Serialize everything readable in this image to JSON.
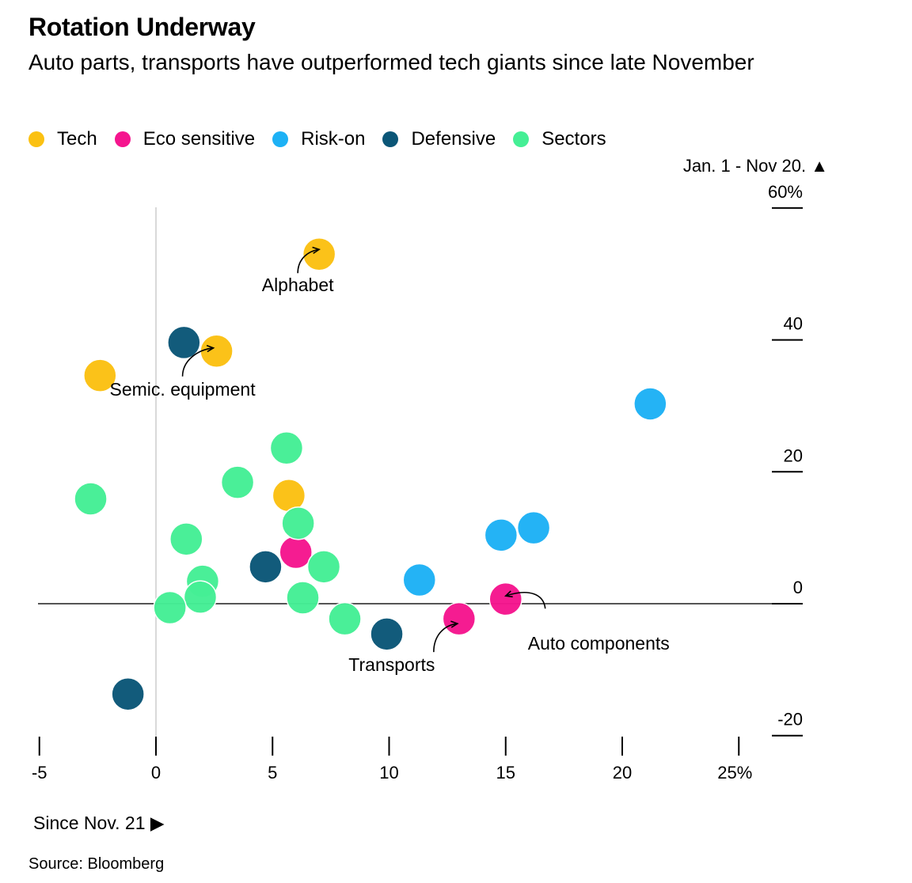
{
  "title": "Rotation Underway",
  "subtitle": "Auto parts, transports have outperformed tech giants since late November",
  "source": "Source: Bloomberg",
  "colors": {
    "Tech": "#fbc112",
    "Eco sensitive": "#f5158e",
    "Risk-on": "#1db1f5",
    "Defensive": "#0b5677",
    "Sectors": "#45ef95"
  },
  "chart_data": {
    "type": "scatter",
    "title": "Rotation Underway",
    "subtitle": "Auto parts, transports have outperformed tech giants since late November",
    "xlabel": "Since Nov. 21 ▶",
    "ylabel": "Jan. 1 - Nov 20. ▲",
    "xlim": [
      -5,
      27
    ],
    "ylim": [
      -20,
      60
    ],
    "x_ticks": [
      -5,
      0,
      5,
      10,
      15,
      20,
      25
    ],
    "x_tick_labels": [
      "-5",
      "0",
      "5",
      "10",
      "15",
      "20",
      "25%"
    ],
    "y_ticks": [
      60,
      40,
      20,
      0,
      -20
    ],
    "y_tick_labels": [
      "60%",
      "40",
      "20",
      "0",
      "-20"
    ],
    "legend": [
      "Tech",
      "Eco sensitive",
      "Risk-on",
      "Defensive",
      "Sectors"
    ],
    "legend_position": "top-left",
    "grid": false,
    "series": [
      {
        "name": "Tech",
        "points": [
          {
            "x": 7.0,
            "y": 53.0,
            "label": "Alphabet"
          },
          {
            "x": 2.6,
            "y": 38.3,
            "label": "Semic. equipment"
          },
          {
            "x": -2.4,
            "y": 34.6
          },
          {
            "x": 5.7,
            "y": 16.4
          }
        ]
      },
      {
        "name": "Eco sensitive",
        "points": [
          {
            "x": 6.0,
            "y": 7.8
          },
          {
            "x": 13.0,
            "y": -2.3,
            "label": "Transports"
          },
          {
            "x": 15.0,
            "y": 0.7,
            "label": "Auto components"
          }
        ]
      },
      {
        "name": "Risk-on",
        "points": [
          {
            "x": 21.2,
            "y": 30.3
          },
          {
            "x": 16.2,
            "y": 11.5
          },
          {
            "x": 14.8,
            "y": 10.4
          },
          {
            "x": 11.3,
            "y": 3.6
          }
        ]
      },
      {
        "name": "Defensive",
        "points": [
          {
            "x": 1.2,
            "y": 39.6
          },
          {
            "x": 4.7,
            "y": 5.6
          },
          {
            "x": 9.9,
            "y": -4.6
          },
          {
            "x": -1.2,
            "y": -13.7
          }
        ]
      },
      {
        "name": "Sectors",
        "points": [
          {
            "x": 5.6,
            "y": 23.6
          },
          {
            "x": 3.5,
            "y": 18.4
          },
          {
            "x": -2.8,
            "y": 15.9
          },
          {
            "x": 6.1,
            "y": 12.2
          },
          {
            "x": 1.3,
            "y": 9.8
          },
          {
            "x": 7.2,
            "y": 5.6
          },
          {
            "x": 2.0,
            "y": 3.4
          },
          {
            "x": 1.9,
            "y": 1.0
          },
          {
            "x": 6.3,
            "y": 0.9
          },
          {
            "x": 0.6,
            "y": -0.6
          },
          {
            "x": 8.1,
            "y": -2.3
          }
        ]
      }
    ]
  }
}
